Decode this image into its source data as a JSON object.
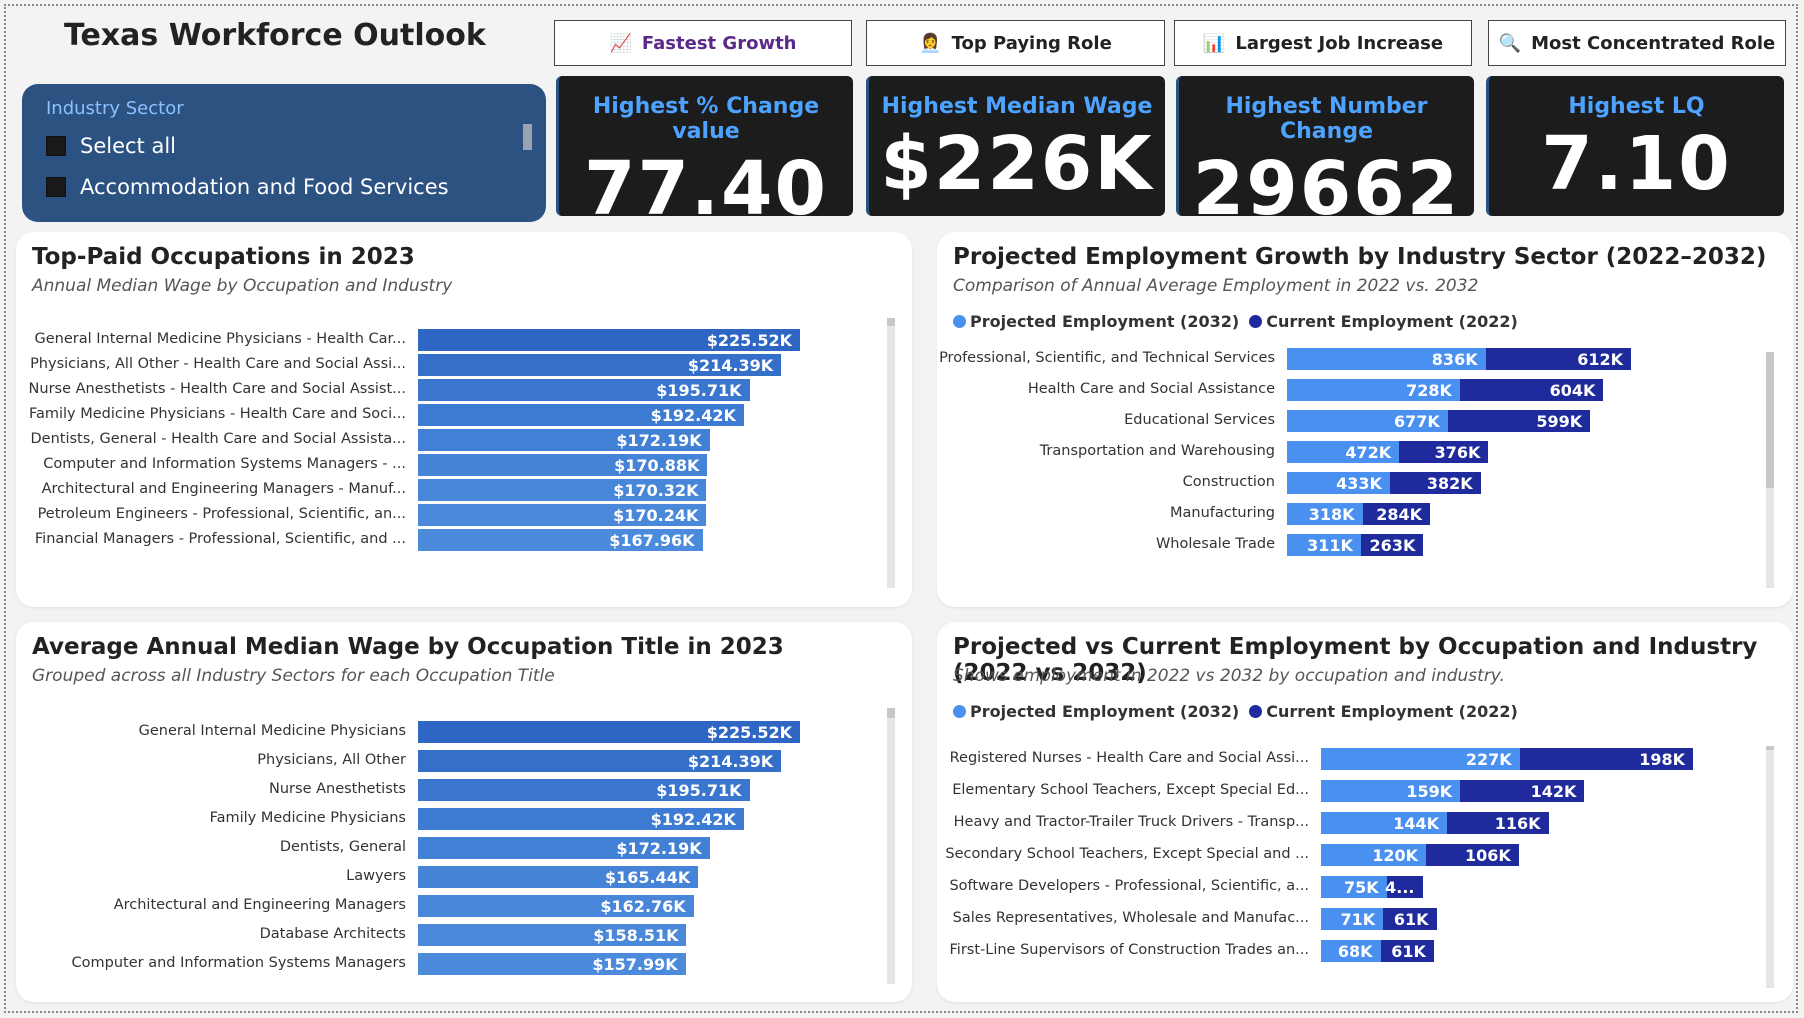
{
  "app": {
    "title": "Texas Workforce Outlook"
  },
  "nav": [
    {
      "label": "Fastest Growth",
      "icon": "📈"
    },
    {
      "label": "Top Paying Role",
      "icon": "👩‍💼"
    },
    {
      "label": "Largest Job Increase",
      "icon": "📊"
    },
    {
      "label": "Most Concentrated Role",
      "icon": "🔍"
    }
  ],
  "slicer": {
    "header": "Industry Sector",
    "options": [
      "Select all",
      "Accommodation and Food Services"
    ]
  },
  "kpis": [
    {
      "label": "Highest % Change value",
      "value": "77.40"
    },
    {
      "label": "Highest Median Wage",
      "value": "$226K"
    },
    {
      "label": "Highest Number Change",
      "value": "29662"
    },
    {
      "label": "Highest LQ",
      "value": "7.10"
    }
  ],
  "colors": {
    "projected": "#4a90f0",
    "current": "#1f2a9c",
    "wage_bar": "#3a78d0",
    "slicer": "#2c5282",
    "kpi_label": "#4da3ff"
  },
  "chart_data": [
    {
      "type": "bar",
      "title": "Top-Paid Occupations in 2023",
      "subtitle": "Annual Median Wage by Occupation and Industry",
      "categories": [
        "General Internal Medicine Physicians - Health Car...",
        "Physicians, All Other - Health Care and Social Assi...",
        "Nurse Anesthetists - Health Care and Social Assist...",
        "Family Medicine Physicians - Health Care and Soci...",
        "Dentists, General - Health Care and Social Assista...",
        "Computer and Information Systems Managers - ...",
        "Architectural and Engineering Managers - Manuf...",
        "Petroleum Engineers - Professional, Scientific, an...",
        "Financial Managers - Professional, Scientific, and ..."
      ],
      "values": [
        225.52,
        214.39,
        195.71,
        192.42,
        172.19,
        170.88,
        170.32,
        170.24,
        167.96
      ],
      "labels": [
        "$225.52K",
        "$214.39K",
        "$195.71K",
        "$192.42K",
        "$172.19K",
        "$170.88K",
        "$170.32K",
        "$170.24K",
        "$167.96K"
      ],
      "xlim": [
        0,
        225.52
      ]
    },
    {
      "type": "bar",
      "title": "Projected Employment Growth by Industry Sector (2022–2032)",
      "subtitle": "Comparison of Annual Average Employment in 2022 vs. 2032",
      "categories": [
        "Professional, Scientific, and Technical Services",
        "Health Care and Social Assistance",
        "Educational Services",
        "Transportation and Warehousing",
        "Construction",
        "Manufacturing",
        "Wholesale Trade"
      ],
      "series": [
        {
          "name": "Projected Employment (2032)",
          "values": [
            836,
            728,
            677,
            472,
            433,
            318,
            311
          ],
          "labels": [
            "836K",
            "728K",
            "677K",
            "472K",
            "433K",
            "318K",
            "311K"
          ]
        },
        {
          "name": "Current Employment (2022)",
          "values": [
            612,
            604,
            599,
            376,
            382,
            284,
            263
          ],
          "labels": [
            "612K",
            "604K",
            "599K",
            "376K",
            "382K",
            "284K",
            "263K"
          ]
        }
      ],
      "xlim": [
        0,
        1448
      ]
    },
    {
      "type": "bar",
      "title": "Average Annual Median Wage by Occupation Title in 2023",
      "subtitle": "Grouped across all Industry Sectors for each Occupation Title",
      "categories": [
        "General Internal Medicine Physicians",
        "Physicians, All Other",
        "Nurse Anesthetists",
        "Family Medicine Physicians",
        "Dentists, General",
        "Lawyers",
        "Architectural and Engineering Managers",
        "Database Architects",
        "Computer and Information Systems Managers"
      ],
      "values": [
        225.52,
        214.39,
        195.71,
        192.42,
        172.19,
        165.44,
        162.76,
        158.51,
        157.99
      ],
      "labels": [
        "$225.52K",
        "$214.39K",
        "$195.71K",
        "$192.42K",
        "$172.19K",
        "$165.44K",
        "$162.76K",
        "$158.51K",
        "$157.99K"
      ],
      "xlim": [
        0,
        225.52
      ]
    },
    {
      "type": "bar",
      "title": "Projected vs Current Employment by Occupation and Industry (2022 vs 2032)",
      "subtitle": "Shows employment in 2022 vs 2032 by occupation and industry.",
      "categories": [
        "Registered Nurses - Health Care and Social Assi...",
        "Elementary School Teachers, Except Special Ed...",
        "Heavy and Tractor-Trailer Truck Drivers - Transp...",
        "Secondary School Teachers, Except Special and ...",
        "Software Developers - Professional, Scientific, a...",
        "Sales Representatives, Wholesale and Manufac...",
        "First-Line Supervisors of Construction Trades an..."
      ],
      "series": [
        {
          "name": "Projected Employment (2032)",
          "values": [
            227,
            159,
            144,
            120,
            75,
            71,
            68
          ],
          "labels": [
            "227K",
            "159K",
            "144K",
            "120K",
            "75K",
            "71K",
            "68K"
          ]
        },
        {
          "name": "Current Employment (2022)",
          "values": [
            198,
            142,
            116,
            106,
            41,
            61,
            61
          ],
          "labels": [
            "198K",
            "142K",
            "116K",
            "106K",
            "4...",
            "61K",
            "61K"
          ]
        }
      ],
      "xlim": [
        0,
        425
      ]
    }
  ]
}
